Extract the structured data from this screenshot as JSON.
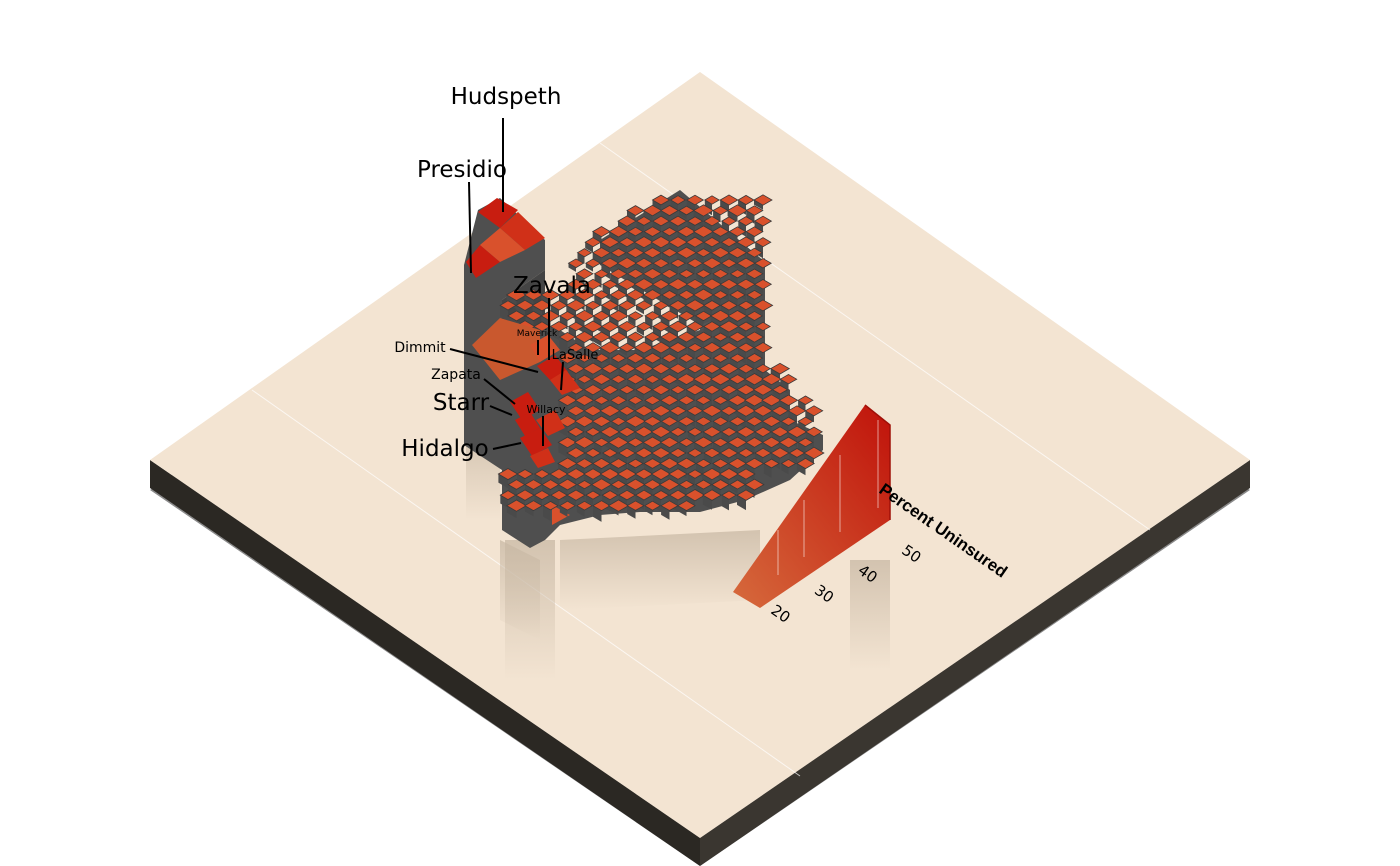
{
  "colors": {
    "base_top": "#f3e4d2",
    "base_side": "#2f2b26",
    "base_shadow": "#8a8a8a",
    "county_top": "#d9512c",
    "county_high": "#c81d10",
    "county_wall": "#4f4f4f",
    "county_wall_dark": "#3e3e3e"
  },
  "map": {
    "legend": {
      "title": "Percent Uninsured",
      "ticks": [
        "20",
        "30",
        "40",
        "50"
      ],
      "range": [
        18,
        54
      ],
      "colors": [
        "#d66a3c",
        "#c0120a"
      ]
    },
    "labels": [
      {
        "id": "hudspeth",
        "text": "Hudspeth",
        "size": "large"
      },
      {
        "id": "presidio",
        "text": "Presidio",
        "size": "large"
      },
      {
        "id": "zavala",
        "text": "Zavala",
        "size": "large"
      },
      {
        "id": "maverick",
        "text": "Maverick",
        "size": "tiny"
      },
      {
        "id": "lasalle",
        "text": "LaSalle",
        "size": "small"
      },
      {
        "id": "dimmit",
        "text": "Dimmit",
        "size": "small"
      },
      {
        "id": "zapata",
        "text": "Zapata",
        "size": "small"
      },
      {
        "id": "starr",
        "text": "Starr",
        "size": "large"
      },
      {
        "id": "willacy",
        "text": "Willacy",
        "size": "tiny"
      },
      {
        "id": "hidalgo",
        "text": "Hidalgo",
        "size": "large"
      }
    ]
  }
}
